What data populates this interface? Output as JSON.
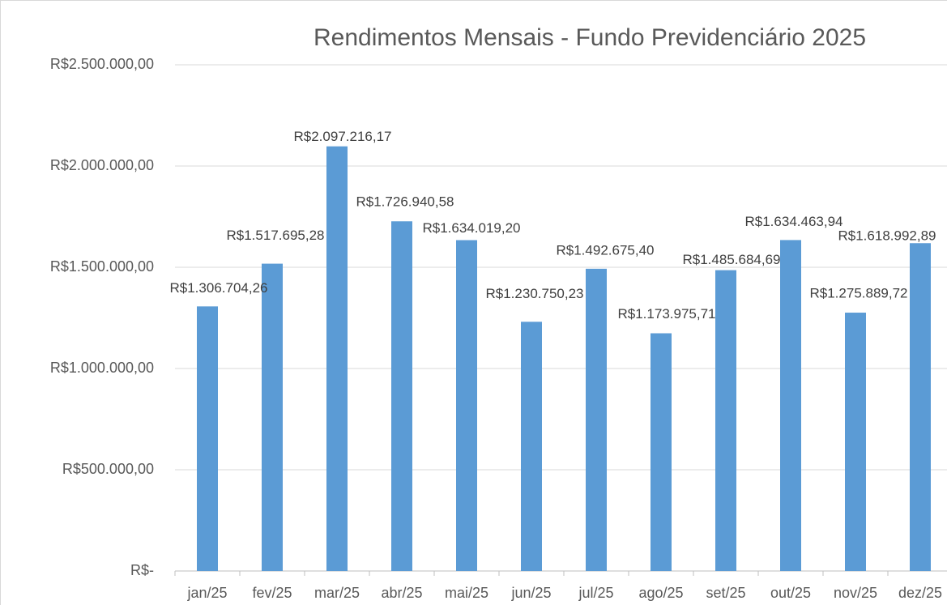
{
  "chart_data": {
    "type": "bar",
    "title": "Rendimentos Mensais - Fundo Previdenciário  2025",
    "categories": [
      "jan/25",
      "fev/25",
      "mar/25",
      "abr/25",
      "mai/25",
      "jun/25",
      "jul/25",
      "ago/25",
      "set/25",
      "out/25",
      "nov/25",
      "dez/25"
    ],
    "values": [
      1306704.26,
      1517695.28,
      2097216.17,
      1726940.58,
      1634019.2,
      1230750.23,
      1492675.4,
      1173975.71,
      1485684.69,
      1634463.94,
      1275889.72,
      1618992.89
    ],
    "value_labels": [
      "R$1.306.704,26",
      "R$1.517.695,28",
      "R$2.097.216,17",
      "R$1.726.940,58",
      "R$1.634.019,20",
      "R$1.230.750,23",
      "R$1.492.675,40",
      "R$1.173.975,71",
      "R$1.485.684,69",
      "R$1.634.463,94",
      "R$1.275.889,72",
      "R$1.618.992,89"
    ],
    "color": "#5b9bd5",
    "ylim": [
      0,
      2500000
    ],
    "yticks": [
      {
        "value": 0,
        "label": "R$-"
      },
      {
        "value": 500000,
        "label": "R$500.000,00"
      },
      {
        "value": 1000000,
        "label": "R$1.000.000,00"
      },
      {
        "value": 1500000,
        "label": "R$1.500.000,00"
      },
      {
        "value": 2000000,
        "label": "R$2.000.000,00"
      },
      {
        "value": 2500000,
        "label": "R$2.500.000,00"
      }
    ],
    "grid": true
  }
}
